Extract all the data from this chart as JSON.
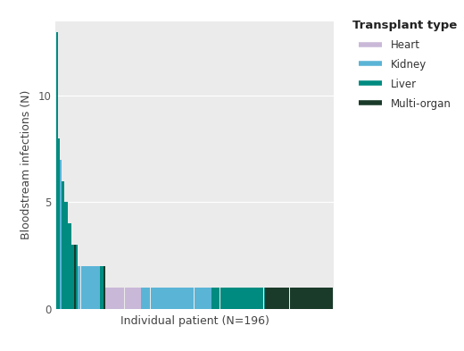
{
  "xlabel": "Individual patient (N=196)",
  "ylabel": "Bloodstream infections (N)",
  "legend_title": "Transplant type",
  "legend_labels": [
    "Heart",
    "Kidney",
    "Liver",
    "Multi-organ"
  ],
  "colors": {
    "Heart": "#c9b8d8",
    "Kidney": "#5ab4d6",
    "Liver": "#008b80",
    "Multi-organ": "#1a3a2a"
  },
  "background_color": "#ebebeb",
  "grid_color": "#ffffff",
  "yticks": [
    0,
    5,
    10
  ],
  "ylim": [
    0,
    13.5
  ],
  "n_patients": 196,
  "bar_sequence": [
    {
      "value": 13,
      "type": "Liver"
    },
    {
      "value": 8,
      "type": "Liver"
    },
    {
      "value": 7,
      "type": "Kidney"
    },
    {
      "value": 6,
      "type": "Liver"
    },
    {
      "value": 6,
      "type": "Liver"
    },
    {
      "value": 5,
      "type": "Liver"
    },
    {
      "value": 5,
      "type": "Liver"
    },
    {
      "value": 4,
      "type": "Liver"
    },
    {
      "value": 4,
      "type": "Liver"
    },
    {
      "value": 3,
      "type": "Liver"
    },
    {
      "value": 3,
      "type": "Liver"
    },
    {
      "value": 3,
      "type": "Multi-organ"
    },
    {
      "value": 3,
      "type": "Liver"
    },
    {
      "value": 2,
      "type": "Kidney"
    },
    {
      "value": 2,
      "type": "Kidney"
    },
    {
      "value": 2,
      "type": "Kidney"
    },
    {
      "value": 2,
      "type": "Kidney"
    },
    {
      "value": 2,
      "type": "Kidney"
    },
    {
      "value": 2,
      "type": "Kidney"
    },
    {
      "value": 2,
      "type": "Kidney"
    },
    {
      "value": 2,
      "type": "Kidney"
    },
    {
      "value": 2,
      "type": "Kidney"
    },
    {
      "value": 2,
      "type": "Kidney"
    },
    {
      "value": 2,
      "type": "Kidney"
    },
    {
      "value": 2,
      "type": "Kidney"
    },
    {
      "value": 2,
      "type": "Kidney"
    },
    {
      "value": 2,
      "type": "Kidney"
    },
    {
      "value": 2,
      "type": "Liver"
    },
    {
      "value": 2,
      "type": "Liver"
    },
    {
      "value": 2,
      "type": "Multi-organ"
    },
    {
      "value": 1,
      "type": "Heart"
    },
    {
      "value": 1,
      "type": "Heart"
    },
    {
      "value": 1,
      "type": "Heart"
    },
    {
      "value": 1,
      "type": "Heart"
    },
    {
      "value": 1,
      "type": "Heart"
    },
    {
      "value": 1,
      "type": "Heart"
    },
    {
      "value": 1,
      "type": "Heart"
    },
    {
      "value": 1,
      "type": "Heart"
    },
    {
      "value": 1,
      "type": "Heart"
    },
    {
      "value": 1,
      "type": "Heart"
    },
    {
      "value": 1,
      "type": "Heart"
    },
    {
      "value": 1,
      "type": "Heart"
    },
    {
      "value": 1,
      "type": "Heart"
    },
    {
      "value": 1,
      "type": "Heart"
    },
    {
      "value": 1,
      "type": "Heart"
    },
    {
      "value": 1,
      "type": "Heart"
    },
    {
      "value": 1,
      "type": "Heart"
    },
    {
      "value": 1,
      "type": "Heart"
    },
    {
      "value": 1,
      "type": "Heart"
    },
    {
      "value": 1,
      "type": "Heart"
    },
    {
      "value": 1,
      "type": "Heart"
    },
    {
      "value": 1,
      "type": "Heart"
    },
    {
      "value": 1,
      "type": "Kidney"
    },
    {
      "value": 1,
      "type": "Kidney"
    },
    {
      "value": 1,
      "type": "Kidney"
    },
    {
      "value": 1,
      "type": "Kidney"
    },
    {
      "value": 1,
      "type": "Kidney"
    },
    {
      "value": 1,
      "type": "Kidney"
    },
    {
      "value": 1,
      "type": "Kidney"
    },
    {
      "value": 1,
      "type": "Kidney"
    },
    {
      "value": 1,
      "type": "Kidney"
    },
    {
      "value": 1,
      "type": "Kidney"
    },
    {
      "value": 1,
      "type": "Kidney"
    },
    {
      "value": 1,
      "type": "Kidney"
    },
    {
      "value": 1,
      "type": "Kidney"
    },
    {
      "value": 1,
      "type": "Kidney"
    },
    {
      "value": 1,
      "type": "Kidney"
    },
    {
      "value": 1,
      "type": "Kidney"
    },
    {
      "value": 1,
      "type": "Kidney"
    },
    {
      "value": 1,
      "type": "Kidney"
    },
    {
      "value": 1,
      "type": "Kidney"
    },
    {
      "value": 1,
      "type": "Kidney"
    },
    {
      "value": 1,
      "type": "Kidney"
    },
    {
      "value": 1,
      "type": "Kidney"
    },
    {
      "value": 1,
      "type": "Kidney"
    },
    {
      "value": 1,
      "type": "Kidney"
    },
    {
      "value": 1,
      "type": "Kidney"
    },
    {
      "value": 1,
      "type": "Kidney"
    },
    {
      "value": 1,
      "type": "Kidney"
    },
    {
      "value": 1,
      "type": "Kidney"
    },
    {
      "value": 1,
      "type": "Kidney"
    },
    {
      "value": 1,
      "type": "Kidney"
    },
    {
      "value": 1,
      "type": "Kidney"
    },
    {
      "value": 1,
      "type": "Kidney"
    },
    {
      "value": 1,
      "type": "Kidney"
    },
    {
      "value": 1,
      "type": "Kidney"
    },
    {
      "value": 1,
      "type": "Kidney"
    },
    {
      "value": 1,
      "type": "Kidney"
    },
    {
      "value": 1,
      "type": "Kidney"
    },
    {
      "value": 1,
      "type": "Kidney"
    },
    {
      "value": 1,
      "type": "Kidney"
    },
    {
      "value": 1,
      "type": "Kidney"
    },
    {
      "value": 1,
      "type": "Kidney"
    },
    {
      "value": 1,
      "type": "Kidney"
    },
    {
      "value": 1,
      "type": "Kidney"
    },
    {
      "value": 1,
      "type": "Kidney"
    },
    {
      "value": 1,
      "type": "Liver"
    },
    {
      "value": 1,
      "type": "Liver"
    },
    {
      "value": 1,
      "type": "Liver"
    },
    {
      "value": 1,
      "type": "Liver"
    },
    {
      "value": 1,
      "type": "Liver"
    },
    {
      "value": 1,
      "type": "Liver"
    },
    {
      "value": 1,
      "type": "Liver"
    },
    {
      "value": 1,
      "type": "Liver"
    },
    {
      "value": 1,
      "type": "Liver"
    },
    {
      "value": 1,
      "type": "Liver"
    },
    {
      "value": 1,
      "type": "Liver"
    },
    {
      "value": 1,
      "type": "Liver"
    },
    {
      "value": 1,
      "type": "Liver"
    },
    {
      "value": 1,
      "type": "Liver"
    },
    {
      "value": 1,
      "type": "Liver"
    },
    {
      "value": 1,
      "type": "Liver"
    },
    {
      "value": 1,
      "type": "Liver"
    },
    {
      "value": 1,
      "type": "Liver"
    },
    {
      "value": 1,
      "type": "Liver"
    },
    {
      "value": 1,
      "type": "Liver"
    },
    {
      "value": 1,
      "type": "Liver"
    },
    {
      "value": 1,
      "type": "Liver"
    },
    {
      "value": 1,
      "type": "Liver"
    },
    {
      "value": 1,
      "type": "Liver"
    },
    {
      "value": 1,
      "type": "Liver"
    },
    {
      "value": 1,
      "type": "Liver"
    },
    {
      "value": 1,
      "type": "Liver"
    },
    {
      "value": 1,
      "type": "Liver"
    },
    {
      "value": 1,
      "type": "Liver"
    },
    {
      "value": 1,
      "type": "Liver"
    },
    {
      "value": 1,
      "type": "Liver"
    },
    {
      "value": 1,
      "type": "Liver"
    },
    {
      "value": 1,
      "type": "Liver"
    },
    {
      "value": 1,
      "type": "Multi-organ"
    },
    {
      "value": 1,
      "type": "Multi-organ"
    },
    {
      "value": 1,
      "type": "Multi-organ"
    },
    {
      "value": 1,
      "type": "Multi-organ"
    },
    {
      "value": 1,
      "type": "Multi-organ"
    },
    {
      "value": 1,
      "type": "Multi-organ"
    },
    {
      "value": 1,
      "type": "Multi-organ"
    },
    {
      "value": 1,
      "type": "Multi-organ"
    },
    {
      "value": 1,
      "type": "Multi-organ"
    },
    {
      "value": 1,
      "type": "Multi-organ"
    },
    {
      "value": 1,
      "type": "Multi-organ"
    },
    {
      "value": 1,
      "type": "Multi-organ"
    },
    {
      "value": 1,
      "type": "Multi-organ"
    },
    {
      "value": 1,
      "type": "Multi-organ"
    },
    {
      "value": 1,
      "type": "Multi-organ"
    },
    {
      "value": 1,
      "type": "Multi-organ"
    },
    {
      "value": 1,
      "type": "Multi-organ"
    },
    {
      "value": 1,
      "type": "Multi-organ"
    },
    {
      "value": 1,
      "type": "Multi-organ"
    },
    {
      "value": 1,
      "type": "Multi-organ"
    },
    {
      "value": 1,
      "type": "Multi-organ"
    },
    {
      "value": 1,
      "type": "Multi-organ"
    },
    {
      "value": 1,
      "type": "Multi-organ"
    },
    {
      "value": 1,
      "type": "Multi-organ"
    },
    {
      "value": 1,
      "type": "Multi-organ"
    },
    {
      "value": 1,
      "type": "Multi-organ"
    },
    {
      "value": 1,
      "type": "Multi-organ"
    },
    {
      "value": 1,
      "type": "Multi-organ"
    },
    {
      "value": 1,
      "type": "Multi-organ"
    },
    {
      "value": 1,
      "type": "Multi-organ"
    },
    {
      "value": 1,
      "type": "Multi-organ"
    },
    {
      "value": 1,
      "type": "Multi-organ"
    },
    {
      "value": 1,
      "type": "Multi-organ"
    },
    {
      "value": 1,
      "type": "Multi-organ"
    },
    {
      "value": 1,
      "type": "Multi-organ"
    },
    {
      "value": 1,
      "type": "Multi-organ"
    },
    {
      "value": 1,
      "type": "Multi-organ"
    },
    {
      "value": 1,
      "type": "Multi-organ"
    },
    {
      "value": 1,
      "type": "Multi-organ"
    },
    {
      "value": 1,
      "type": "Multi-organ"
    },
    {
      "value": 1,
      "type": "Multi-organ"
    },
    {
      "value": 1,
      "type": "Multi-organ"
    }
  ]
}
